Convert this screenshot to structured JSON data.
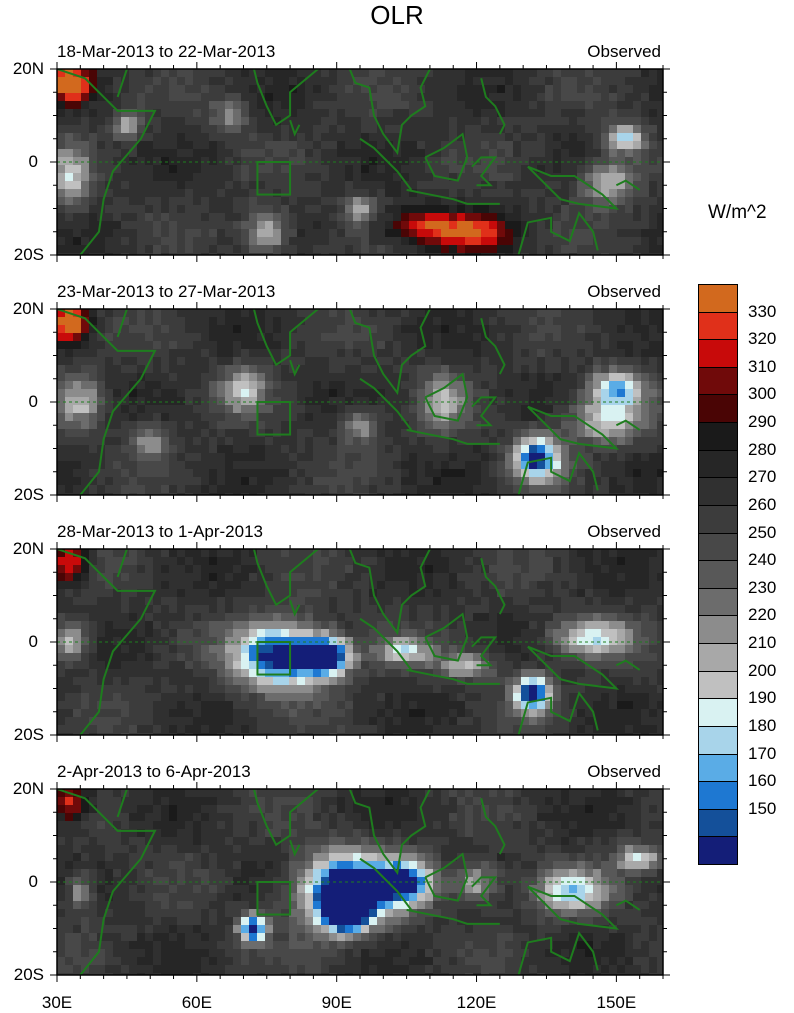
{
  "title": "OLR",
  "panels": [
    {
      "date_label": "18-Mar-2013 to 22-Mar-2013",
      "source_label": "Observed"
    },
    {
      "date_label": "23-Mar-2013 to 27-Mar-2013",
      "source_label": "Observed"
    },
    {
      "date_label": "28-Mar-2013 to 1-Apr-2013",
      "source_label": "Observed"
    },
    {
      "date_label": "2-Apr-2013 to 6-Apr-2013",
      "source_label": "Observed"
    }
  ],
  "y_ticks": [
    "20N",
    "0",
    "20S"
  ],
  "x_ticks": [
    "30E",
    "60E",
    "90E",
    "120E",
    "150E"
  ],
  "colorbar": {
    "units": "W/m^2",
    "tick_labels": [
      "330",
      "320",
      "310",
      "300",
      "290",
      "280",
      "270",
      "260",
      "250",
      "240",
      "230",
      "220",
      "210",
      "200",
      "190",
      "180",
      "170",
      "160",
      "150"
    ],
    "colors": [
      "#d2691e",
      "#e0301a",
      "#c80a0a",
      "#700a0a",
      "#4a0505",
      "#1a1a1a",
      "#262626",
      "#303030",
      "#3c3c3c",
      "#484848",
      "#585858",
      "#6c6c6c",
      "#8c8c8c",
      "#a8a8a8",
      "#c0c0c0",
      "#d9f2f2",
      "#a8d4ea",
      "#5aace6",
      "#1e78d2",
      "#14509a",
      "#141e78"
    ]
  },
  "map_region": {
    "lon_range": [
      30,
      160
    ],
    "lat_range": [
      -20,
      20
    ],
    "box_lon": [
      73,
      80
    ],
    "box_lat": [
      -7,
      0
    ]
  }
}
